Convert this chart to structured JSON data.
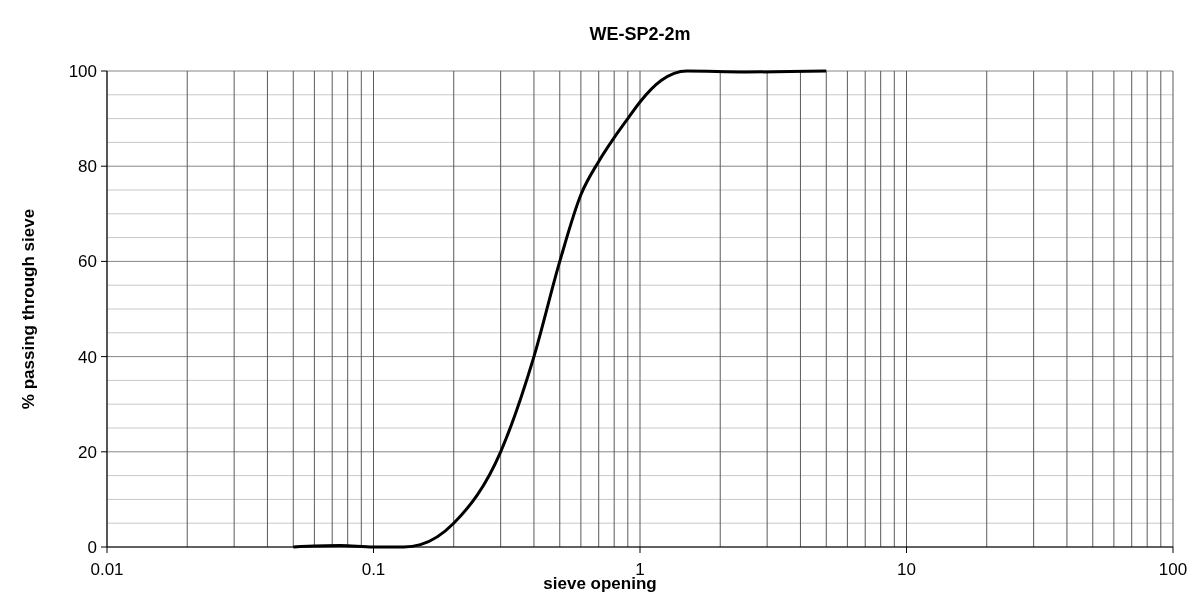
{
  "chart_data": {
    "type": "line",
    "title": "WE-SP2-2m",
    "xlabel": "sieve opening",
    "ylabel": "% passing through sieve",
    "log": "x",
    "grid": true,
    "marker": "none",
    "line_style": "solid",
    "xlim": [
      0.01,
      100
    ],
    "xticks": [
      0.01,
      0.1,
      1,
      10,
      100
    ],
    "ylim": [
      0,
      100
    ],
    "yticks": [
      0,
      20,
      40,
      60,
      80,
      100
    ],
    "series": [
      {
        "color": "#000000",
        "x": [
          0.05,
          0.075,
          0.1,
          0.13,
          0.15,
          0.2,
          0.3,
          0.4,
          0.5,
          0.6,
          0.7,
          0.8,
          0.9,
          1,
          1.2,
          1.5,
          2.5,
          5
        ],
        "values": [
          0,
          0.3,
          0,
          0,
          0.5,
          5,
          20,
          40,
          60,
          74,
          81,
          86,
          90,
          93.5,
          98,
          100,
          99.8,
          100
        ]
      }
    ]
  }
}
